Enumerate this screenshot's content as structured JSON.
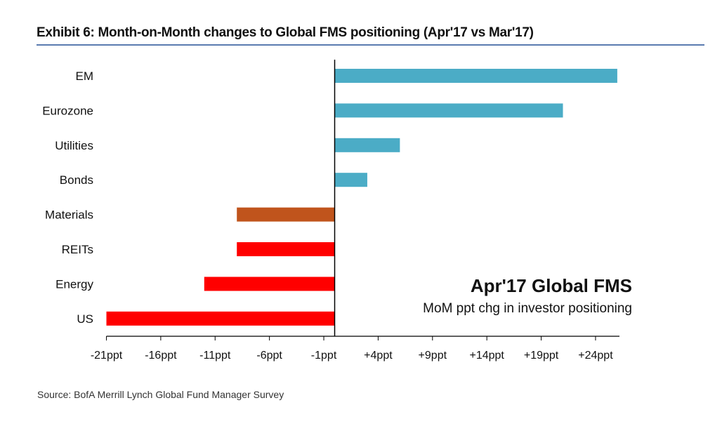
{
  "title": "Exhibit 6: Month-on-Month changes to Global FMS positioning (Apr'17 vs Mar'17)",
  "source": "Source: BofA Merrill Lynch Global Fund Manager Survey",
  "chart_data": {
    "type": "bar",
    "orientation": "horizontal",
    "title": "Exhibit 6: Month-on-Month changes to Global FMS positioning (Apr'17 vs Mar'17)",
    "annotation_title": "Apr'17 Global FMS",
    "annotation_subtitle": "MoM ppt chg in investor positioning",
    "categories": [
      "EM",
      "Eurozone",
      "Utilities",
      "Bonds",
      "Materials",
      "REITs",
      "Energy",
      "US"
    ],
    "values": [
      26,
      21,
      6,
      3,
      -9,
      -9,
      -12,
      -21
    ],
    "colors": [
      "#4bacc6",
      "#4bacc6",
      "#4bacc6",
      "#4bacc6",
      "#c0541c",
      "#ff0000",
      "#ff0000",
      "#ff0000"
    ],
    "xticks": [
      -21,
      -16,
      -11,
      -6,
      -1,
      4,
      9,
      14,
      19,
      24
    ],
    "xtick_labels": [
      "-21ppt",
      "-16ppt",
      "-11ppt",
      "-6ppt",
      "-1ppt",
      "+4ppt",
      "+9ppt",
      "+14ppt",
      "+19ppt",
      "+24ppt"
    ],
    "xlim": [
      -21,
      26.2
    ],
    "xlabel": "",
    "ylabel": "",
    "grid": false
  }
}
